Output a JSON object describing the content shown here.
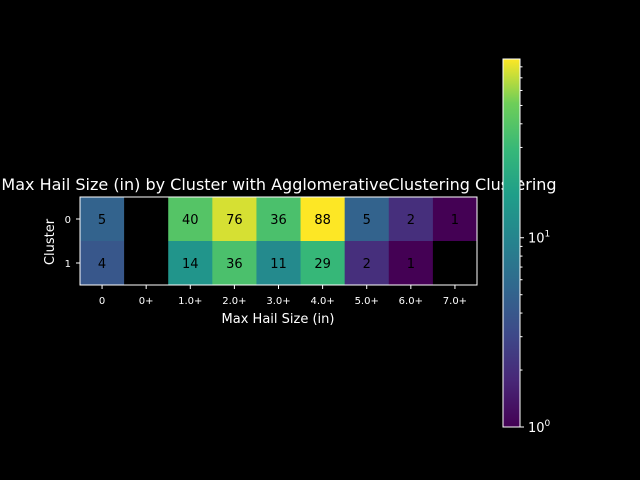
{
  "chart_data": {
    "type": "heatmap",
    "title": "Max Hail Size (in) by Cluster with AgglomerativeClustering Clustering",
    "xlabel": "Max Hail Size (in)",
    "ylabel": "Cluster",
    "x_categories": [
      "0",
      "0+",
      "1.0+",
      "2.0+",
      "3.0+",
      "4.0+",
      "5.0+",
      "6.0+",
      "7.0+"
    ],
    "y_categories": [
      "0",
      "1"
    ],
    "values": [
      [
        5,
        null,
        40,
        76,
        36,
        88,
        5,
        2,
        1
      ],
      [
        4,
        null,
        14,
        36,
        11,
        29,
        2,
        1,
        null
      ]
    ],
    "value_labels": [
      [
        "5",
        "",
        "40",
        "76",
        "36",
        "88",
        "5",
        "2",
        "1"
      ],
      [
        "4",
        "",
        "14",
        "36",
        "11",
        "29",
        "2",
        "1",
        ""
      ]
    ],
    "colorbar": {
      "scale": "log",
      "colormap": "viridis",
      "range": [
        1,
        88
      ],
      "tick_labels": [
        {
          "value": 1,
          "base": "10",
          "exp": "0"
        },
        {
          "value": 10,
          "base": "10",
          "exp": "1"
        }
      ]
    },
    "background_color": "#000000",
    "missing_color": "#000000"
  }
}
